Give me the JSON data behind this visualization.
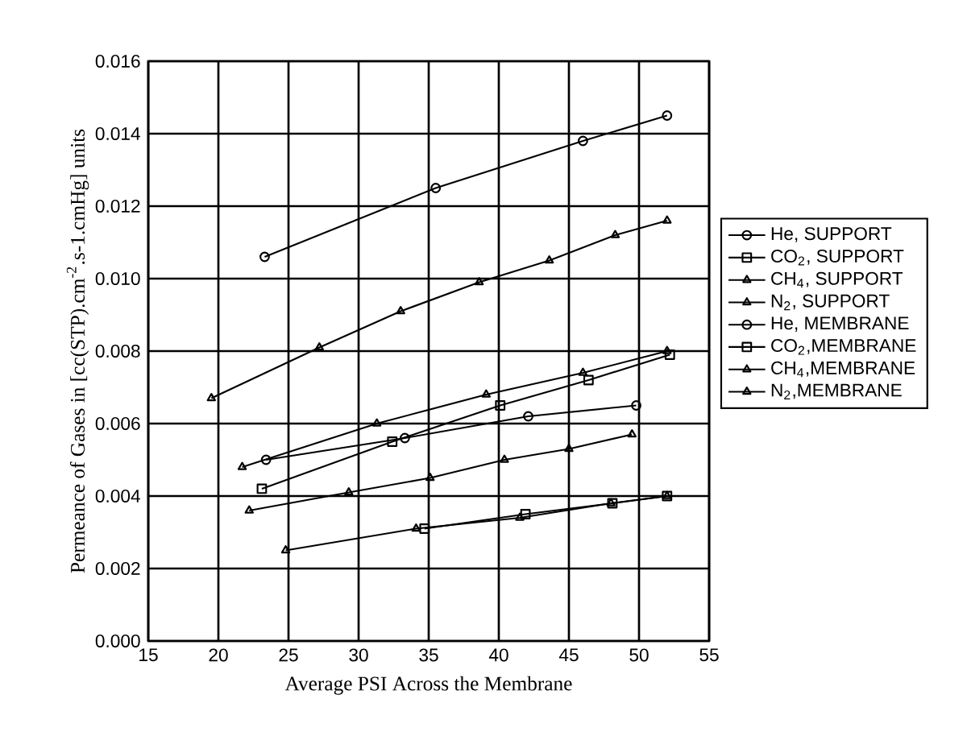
{
  "chart_data": {
    "type": "line",
    "xlabel": "Average PSI Across the Membrane",
    "ylabel": "Permeance of Gases in [cc(STP).cm$^{-2}$.s-1.cmHg] units",
    "xlim": [
      15,
      55
    ],
    "xticks": [
      15,
      20,
      25,
      30,
      35,
      40,
      45,
      50,
      55
    ],
    "ylim": [
      0,
      0.016
    ],
    "yticks": [
      {
        "value": 0,
        "label": "0.000"
      },
      {
        "value": 0.002,
        "label": "0.002"
      },
      {
        "value": 0.004,
        "label": "0.004"
      },
      {
        "value": 0.006,
        "label": "0.006"
      },
      {
        "value": 0.008,
        "label": "0.008"
      },
      {
        "value": 0.01,
        "label": "0.010"
      },
      {
        "value": 0.012,
        "label": "0.012"
      },
      {
        "value": 0.014,
        "label": "0.014"
      },
      {
        "value": 0.016,
        "label": "0.016"
      }
    ],
    "grid": true,
    "legend": "right",
    "line_style": "solid",
    "series": [
      {
        "name": "He, SUPPORT",
        "color": "#000000",
        "marker": "circle",
        "x": [
          23.3,
          35.5,
          46,
          52
        ],
        "values": [
          0.0106,
          0.0125,
          0.0138,
          0.0145
        ]
      },
      {
        "name": "CO$_{2}$, SUPPORT",
        "color": "#000000",
        "marker": "square",
        "x": [
          23.1,
          32.4,
          40.1,
          46.4,
          52.2
        ],
        "values": [
          0.0042,
          0.0055,
          0.0065,
          0.0072,
          0.0079
        ]
      },
      {
        "name": "CH$_{4}$, SUPPORT",
        "color": "#000000",
        "marker": "triangle",
        "x": [
          19.5,
          27.2,
          33,
          38.6,
          43.6,
          48.3,
          52
        ],
        "values": [
          0.0067,
          0.0081,
          0.0091,
          0.0099,
          0.0105,
          0.0112,
          0.0116
        ]
      },
      {
        "name": "N$_{2}$, SUPPORT",
        "color": "#000000",
        "marker": "triangle",
        "x": [
          21.7,
          31.3,
          39.1,
          46,
          52
        ],
        "values": [
          0.0048,
          0.006,
          0.0068,
          0.0074,
          0.008
        ]
      },
      {
        "name": "He, MEMBRANE",
        "color": "#000000",
        "marker": "circle",
        "x": [
          23.4,
          33.3,
          42.1,
          49.8
        ],
        "values": [
          0.005,
          0.0056,
          0.0062,
          0.0065
        ]
      },
      {
        "name": "CO$_{2}$,MEMBRANE",
        "color": "#000000",
        "marker": "square",
        "x": [
          34.7,
          41.9,
          48.1,
          52
        ],
        "values": [
          0.0031,
          0.0035,
          0.0038,
          0.004
        ]
      },
      {
        "name": "CH$_{4}$,MEMBRANE",
        "color": "#000000",
        "marker": "triangle",
        "x": [
          22.2,
          29.3,
          35.1,
          40.4,
          45,
          49.5
        ],
        "values": [
          0.0036,
          0.0041,
          0.0045,
          0.005,
          0.0053,
          0.0057
        ]
      },
      {
        "name": "N$_{2}$,MEMBRANE",
        "color": "#000000",
        "marker": "triangle",
        "x": [
          24.8,
          34.1,
          41.5,
          48,
          52
        ],
        "values": [
          0.0025,
          0.0031,
          0.0034,
          0.0038,
          0.004
        ]
      }
    ]
  }
}
